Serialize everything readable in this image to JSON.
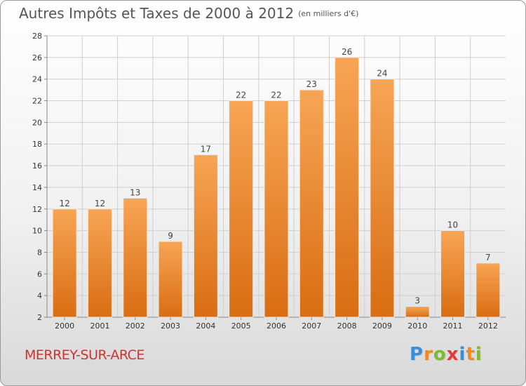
{
  "header": {
    "title": "Autres Impôts et Taxes de 2000 à 2012",
    "subtitle": "(en milliers d'€)"
  },
  "footer": {
    "location": "MERREY-SUR-ARCE",
    "brand": {
      "letters": [
        "P",
        "r",
        "o",
        "x",
        "i",
        "t",
        "i"
      ],
      "colors": [
        "#3a8fd6",
        "#f08a1c",
        "#7cbb2e",
        "#e23b3b",
        "#3a8fd6",
        "#f08a1c",
        "#7cbb2e"
      ]
    }
  },
  "chart_data": {
    "type": "bar",
    "title": "Autres Impôts et Taxes de 2000 à 2012",
    "subtitle": "(en milliers d'€)",
    "categories": [
      "2000",
      "2001",
      "2002",
      "2003",
      "2004",
      "2005",
      "2006",
      "2007",
      "2008",
      "2009",
      "2010",
      "2011",
      "2012"
    ],
    "values": [
      12,
      12,
      13,
      9,
      17,
      22,
      22,
      23,
      26,
      24,
      3,
      10,
      7
    ],
    "ylim": [
      2,
      28
    ],
    "yticks": [
      2,
      4,
      6,
      8,
      10,
      12,
      14,
      16,
      18,
      20,
      22,
      24,
      26,
      28
    ],
    "grid": true,
    "data_labels": true,
    "legend": "none",
    "colors": {
      "bar_top": "#f7a555",
      "bar_bottom": "#d96d12",
      "grid": "#cfcfcf",
      "axis": "#888888"
    }
  }
}
